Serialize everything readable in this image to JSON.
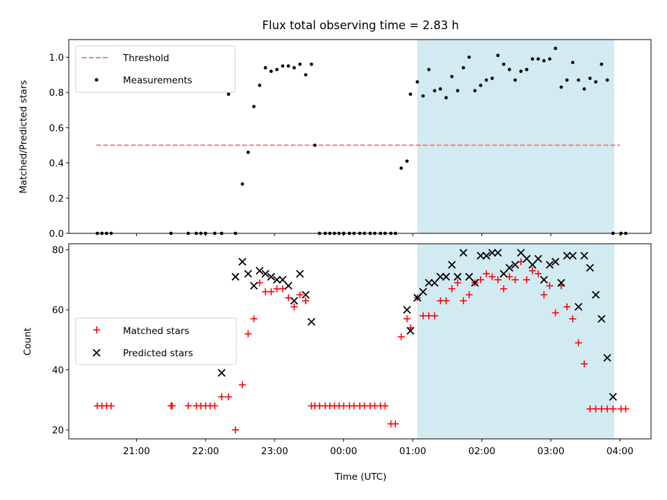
{
  "title": "Flux total observing time = 2.83 h",
  "x_tick_labels": [
    "21:00",
    "22:00",
    "23:00",
    "00:00",
    "01:00",
    "02:00",
    "03:00",
    "04:00"
  ],
  "colors": {
    "threshold": "#f08080",
    "measurement": "#000000",
    "matched": "#ff0000",
    "predicted": "#000000",
    "observing_span": "#add8e6"
  },
  "chart_data": [
    {
      "type": "scatter",
      "xlabel": "",
      "ylabel": "Matched/Predicted stars",
      "ylim": [
        0,
        1.1
      ],
      "yticks": [
        "0.0",
        "0.2",
        "0.4",
        "0.6",
        "0.8",
        "1.0"
      ],
      "xlim_hours_since_midnight": [
        -3.98,
        4.45
      ],
      "x_tick_labels": [
        "21:00",
        "22:00",
        "23:00",
        "00:00",
        "01:00",
        "02:00",
        "03:00",
        "04:00"
      ],
      "shaded_span": [
        "01:04",
        "03:55"
      ],
      "legend_position": "top-left",
      "threshold": {
        "name": "Threshold",
        "value": 0.5,
        "x_range": [
          "20:25",
          "04:00"
        ],
        "style": "dashed"
      },
      "series": [
        {
          "name": "Measurements",
          "marker": "dot",
          "x": [
            "20:26",
            "20:30",
            "20:34",
            "20:38",
            "21:30",
            "21:45",
            "21:52",
            "21:56",
            "22:00",
            "22:08",
            "22:14",
            "22:20",
            "22:26",
            "22:32",
            "22:37",
            "22:42",
            "22:47",
            "22:52",
            "22:57",
            "23:02",
            "23:07",
            "23:12",
            "23:17",
            "23:22",
            "23:27",
            "23:32",
            "23:35",
            "23:39",
            "23:44",
            "23:48",
            "23:52",
            "23:56",
            "00:00",
            "00:05",
            "00:09",
            "00:14",
            "00:18",
            "00:23",
            "00:27",
            "00:32",
            "00:36",
            "00:41",
            "00:45",
            "00:50",
            "00:55",
            "00:58",
            "01:04",
            "01:09",
            "01:14",
            "01:19",
            "01:24",
            "01:29",
            "01:34",
            "01:39",
            "01:44",
            "01:49",
            "01:54",
            "01:59",
            "02:04",
            "02:09",
            "02:14",
            "02:19",
            "02:24",
            "02:29",
            "02:34",
            "02:39",
            "02:44",
            "02:49",
            "02:54",
            "02:59",
            "03:04",
            "03:09",
            "03:14",
            "03:19",
            "03:24",
            "03:29",
            "03:34",
            "03:39",
            "03:44",
            "03:49",
            "03:54",
            "04:01",
            "04:05"
          ],
          "values": [
            0,
            0,
            0,
            0,
            0,
            0,
            0,
            0,
            0,
            0,
            0,
            0.79,
            0,
            0.28,
            0.46,
            0.72,
            0.84,
            0.94,
            0.92,
            0.93,
            0.95,
            0.95,
            0.94,
            0.96,
            0.9,
            0.96,
            0.5,
            0,
            0,
            0,
            0,
            0,
            0,
            0,
            0,
            0,
            0,
            0,
            0,
            0,
            0,
            0,
            0,
            0.37,
            0.41,
            0.79,
            0.86,
            0.78,
            0.93,
            0.81,
            0.82,
            0.77,
            0.89,
            0.81,
            0.94,
            1.0,
            0.81,
            0.84,
            0.87,
            0.88,
            1.01,
            0.96,
            0.93,
            0.87,
            0.92,
            0.93,
            0.99,
            0.99,
            0.98,
            0.99,
            1.05,
            0.83,
            0.87,
            0.97,
            0.87,
            0.82,
            0.88,
            0.86,
            0.96,
            0.87,
            0,
            0,
            0
          ]
        }
      ]
    },
    {
      "type": "scatter",
      "xlabel": "Time (UTC)",
      "ylabel": "Count",
      "ylim": [
        17,
        82
      ],
      "yticks": [
        "20",
        "40",
        "60",
        "80"
      ],
      "xlim_hours_since_midnight": [
        -3.98,
        4.45
      ],
      "x_tick_labels": [
        "21:00",
        "22:00",
        "23:00",
        "00:00",
        "01:00",
        "02:00",
        "03:00",
        "04:00"
      ],
      "shaded_span": [
        "01:04",
        "03:55"
      ],
      "legend_position": "center-left",
      "series": [
        {
          "name": "Matched stars",
          "marker": "plus",
          "x": [
            "20:26",
            "20:30",
            "20:34",
            "20:38",
            "21:30",
            "21:31",
            "21:45",
            "21:52",
            "21:56",
            "22:00",
            "22:04",
            "22:08",
            "22:14",
            "22:20",
            "22:26",
            "22:32",
            "22:37",
            "22:42",
            "22:47",
            "22:52",
            "22:57",
            "23:02",
            "23:07",
            "23:12",
            "23:17",
            "23:22",
            "23:27",
            "23:32",
            "23:35",
            "23:39",
            "23:44",
            "23:48",
            "23:52",
            "23:56",
            "00:00",
            "00:05",
            "00:09",
            "00:14",
            "00:18",
            "00:23",
            "00:27",
            "00:32",
            "00:36",
            "00:41",
            "00:45",
            "00:50",
            "00:55",
            "00:58",
            "01:04",
            "01:09",
            "01:14",
            "01:19",
            "01:24",
            "01:29",
            "01:34",
            "01:39",
            "01:44",
            "01:49",
            "01:54",
            "01:59",
            "02:04",
            "02:09",
            "02:14",
            "02:19",
            "02:24",
            "02:29",
            "02:34",
            "02:39",
            "02:44",
            "02:49",
            "02:54",
            "02:59",
            "03:04",
            "03:09",
            "03:14",
            "03:19",
            "03:24",
            "03:29",
            "03:34",
            "03:39",
            "03:44",
            "03:49",
            "03:54",
            "04:01",
            "04:05"
          ],
          "values": [
            28,
            28,
            28,
            28,
            28,
            28,
            28,
            28,
            28,
            28,
            28,
            28,
            31,
            31,
            20,
            35,
            52,
            57,
            69,
            66,
            66,
            67,
            67,
            64,
            61,
            65,
            63,
            28,
            28,
            28,
            28,
            28,
            28,
            28,
            28,
            28,
            28,
            28,
            28,
            28,
            28,
            28,
            28,
            22,
            22,
            51,
            57,
            54,
            64,
            58,
            58,
            58,
            63,
            63,
            67,
            69,
            63,
            65,
            69,
            70,
            72,
            71,
            70,
            67,
            71,
            70,
            76,
            70,
            73,
            72,
            65,
            68,
            59,
            68,
            61,
            57,
            49,
            42,
            27,
            27,
            27,
            27,
            27,
            27,
            27
          ]
        },
        {
          "name": "Predicted stars",
          "marker": "x",
          "x": [
            "22:14",
            "22:26",
            "22:32",
            "22:37",
            "22:42",
            "22:47",
            "22:52",
            "22:57",
            "23:02",
            "23:07",
            "23:12",
            "23:17",
            "23:22",
            "23:27",
            "23:32",
            "00:55",
            "00:58",
            "01:04",
            "01:09",
            "01:14",
            "01:19",
            "01:24",
            "01:29",
            "01:34",
            "01:39",
            "01:44",
            "01:49",
            "01:54",
            "01:59",
            "02:04",
            "02:09",
            "02:14",
            "02:19",
            "02:24",
            "02:29",
            "02:34",
            "02:39",
            "02:44",
            "02:49",
            "02:54",
            "02:59",
            "03:04",
            "03:09",
            "03:14",
            "03:19",
            "03:24",
            "03:29",
            "03:34",
            "03:39",
            "03:44",
            "03:49",
            "03:54"
          ],
          "values": [
            39,
            71,
            76,
            72,
            68,
            73,
            72,
            71,
            70,
            70,
            68,
            63,
            72,
            65,
            56,
            60,
            53,
            64,
            66,
            69,
            69,
            71,
            71,
            75,
            71,
            79,
            71,
            69,
            78,
            78,
            79,
            79,
            72,
            74,
            75,
            79,
            77,
            75,
            77,
            70,
            75,
            76,
            69,
            78,
            78,
            61,
            78,
            74,
            65,
            57,
            44,
            31
          ]
        }
      ]
    }
  ]
}
